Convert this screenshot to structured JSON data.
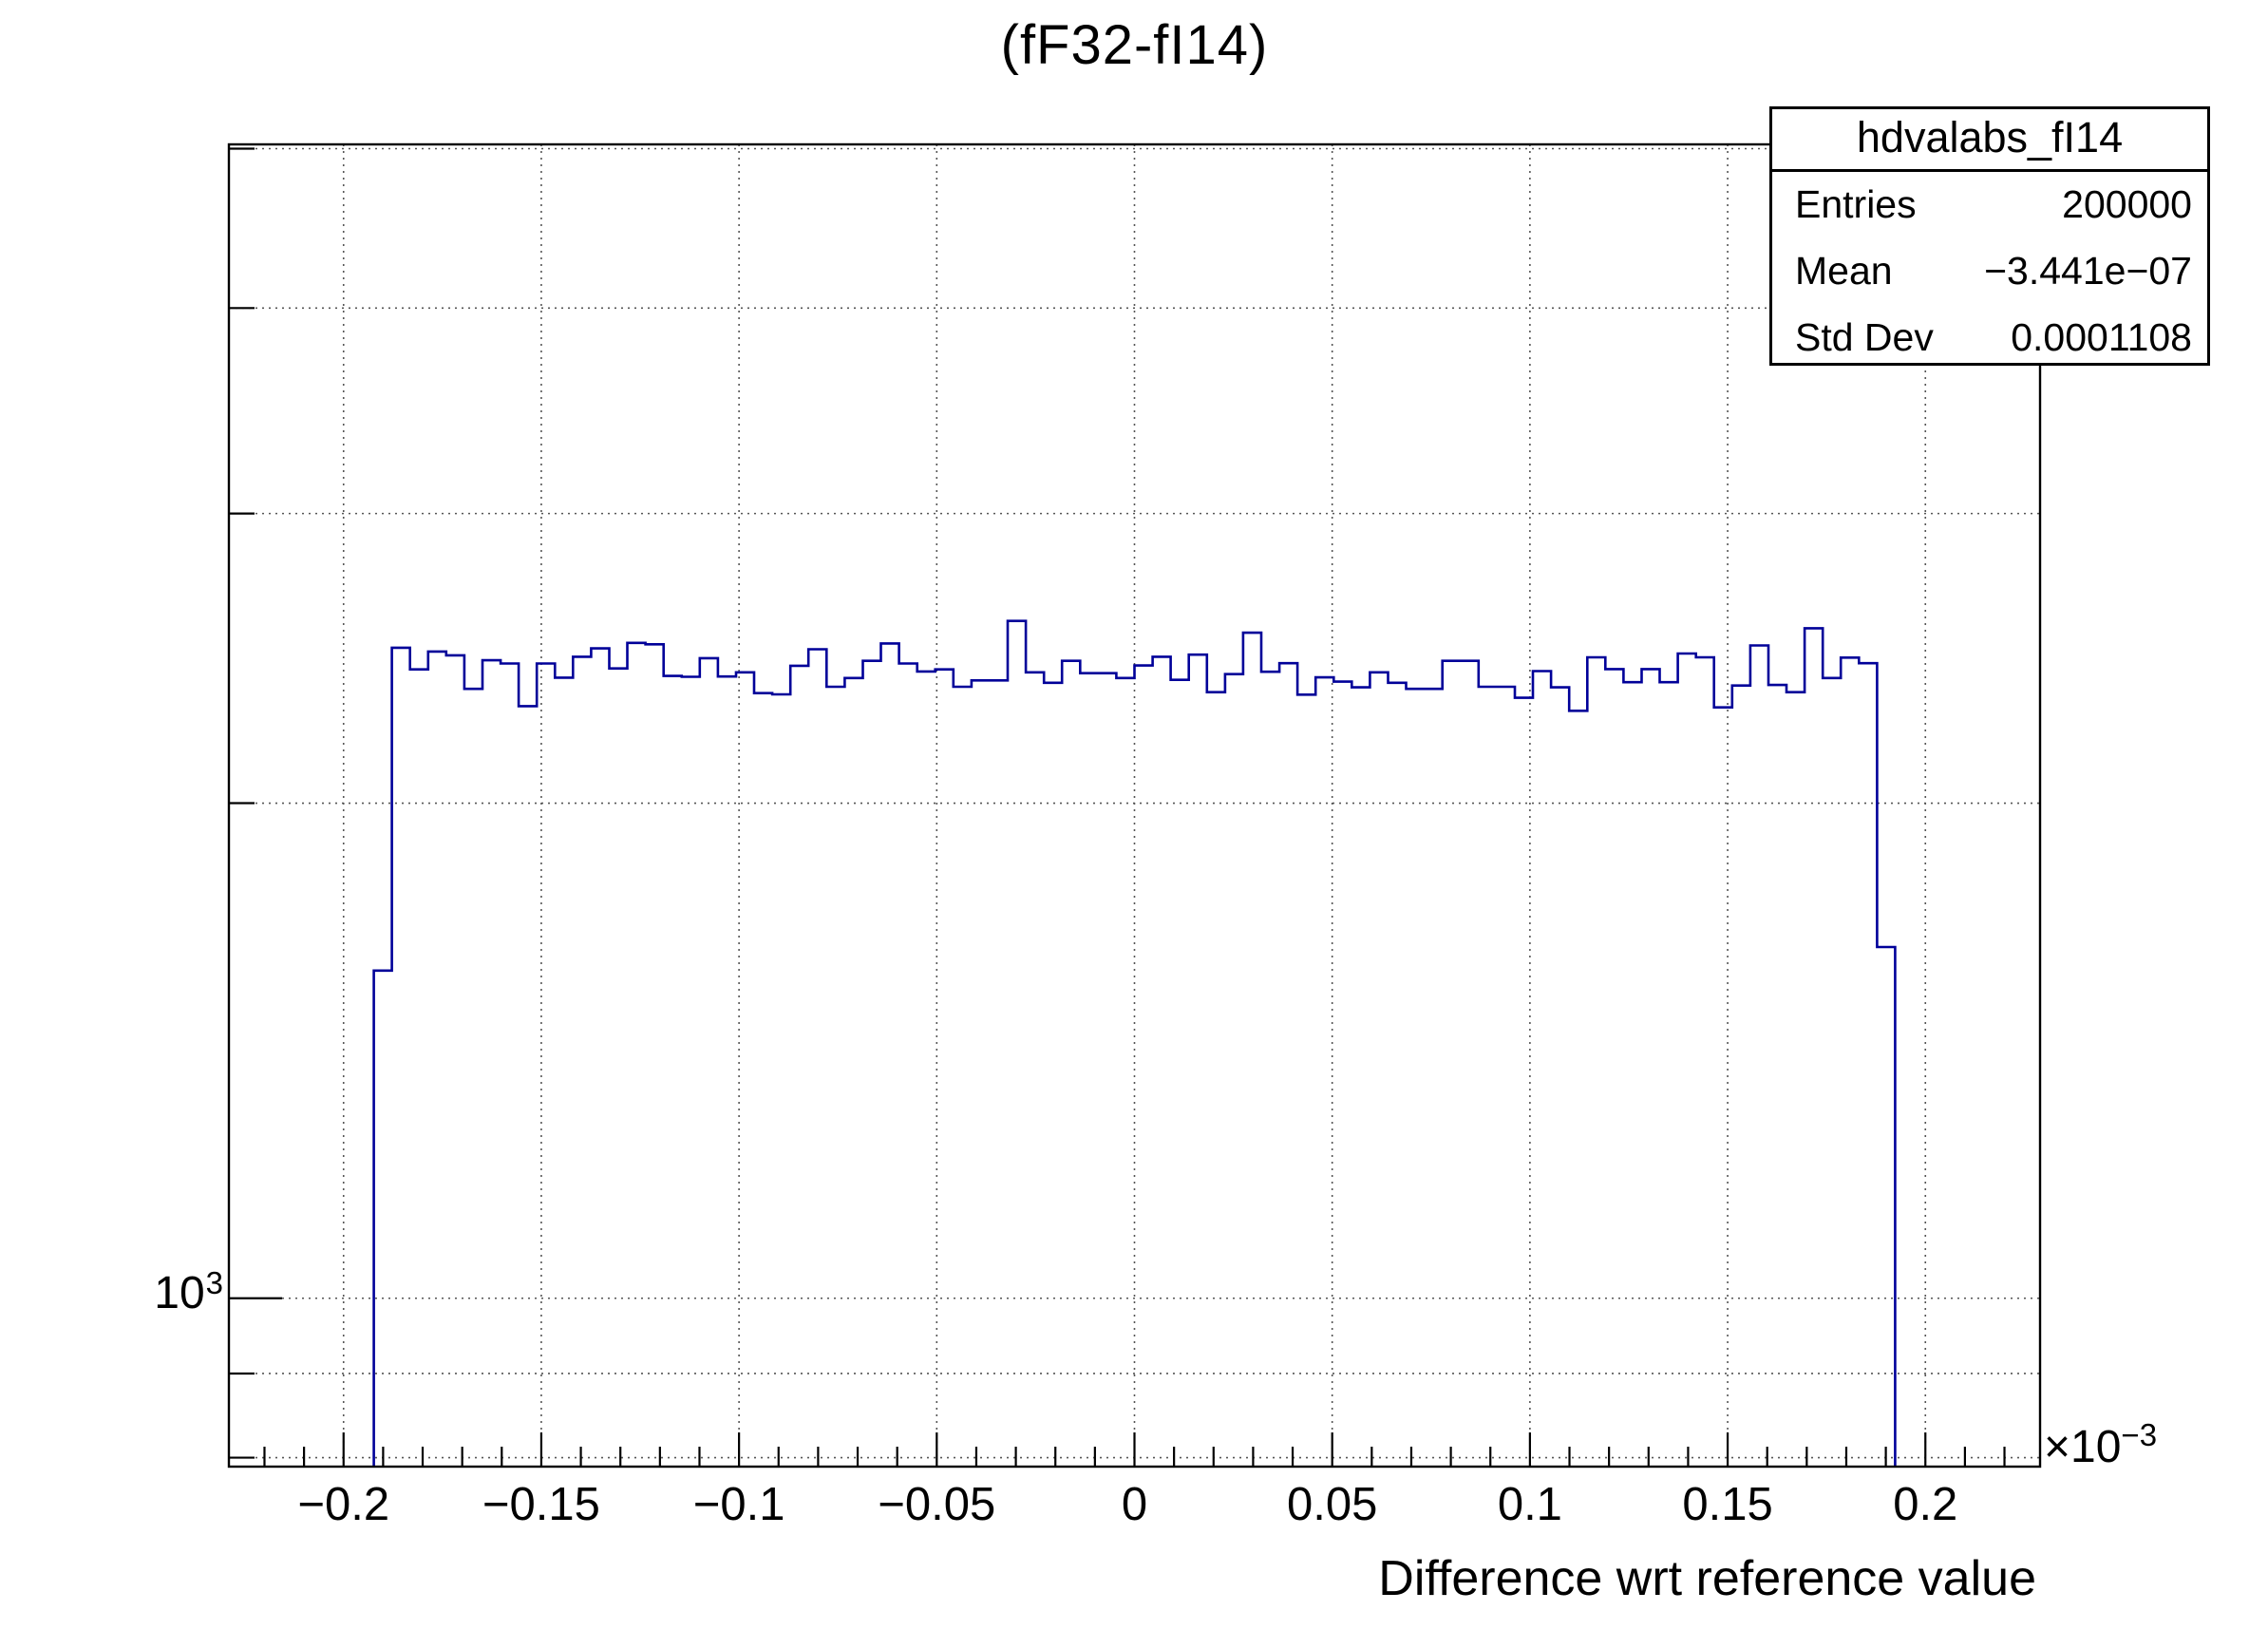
{
  "page": {
    "title": "(fF32-fI14)"
  },
  "axes": {
    "x_title": "Difference wrt reference value",
    "x_multiplier": {
      "base": "×10",
      "exp": "−3"
    },
    "y_tick_label": {
      "base": "10",
      "exp": "3"
    }
  },
  "stats_box": {
    "title": "hdvalabs_fI14",
    "rows": [
      {
        "label": "Entries",
        "value": "200000"
      },
      {
        "label": "Mean",
        "value": "−3.441e−07"
      },
      {
        "label": "Std Dev",
        "value": "0.0001108"
      }
    ]
  },
  "chart_data": {
    "type": "bar",
    "subtype": "step-histogram-log-y",
    "title": "(fF32-fI14)",
    "xlabel": "Difference wrt reference value",
    "ylabel": "",
    "x_units_multiplier": "1e-3",
    "legend": "none",
    "grid": "dotted-on-major-x-and-all-y-ticks",
    "x_axis": {
      "min": -0.229,
      "max": 0.229,
      "tick_values": [
        -0.2,
        -0.15,
        -0.1,
        -0.05,
        0,
        0.05,
        0.1,
        0.15,
        0.2
      ],
      "tick_labels": [
        "−0.2",
        "−0.15",
        "−0.1",
        "−0.05",
        "0",
        "0.05",
        "0.1",
        "0.15",
        "0.2"
      ],
      "minor_tick_step": 0.01
    },
    "y_axis": {
      "scale": "log",
      "min": 790,
      "max": 5030,
      "labeled_tick_value": 1000,
      "grid_tick_values": [
        800,
        900,
        1000,
        2000,
        3000,
        4000,
        5000
      ]
    },
    "histogram": {
      "n_bins": 100,
      "first_populated_bin": 8,
      "bin_width": 0.00458,
      "values": [
        1582,
        2486,
        2412,
        2473,
        2460,
        2347,
        2443,
        2432,
        2291,
        2432,
        2384,
        2455,
        2484,
        2415,
        2503,
        2498,
        2390,
        2387,
        2450,
        2388,
        2402,
        2333,
        2329,
        2424,
        2481,
        2354,
        2383,
        2441,
        2501,
        2432,
        2405,
        2412,
        2354,
        2375,
        2375,
        2581,
        2402,
        2367,
        2441,
        2399,
        2399,
        2383,
        2425,
        2455,
        2377,
        2462,
        2336,
        2396,
        2539,
        2404,
        2433,
        2328,
        2385,
        2371,
        2352,
        2402,
        2367,
        2347,
        2347,
        2441,
        2441,
        2354,
        2354,
        2318,
        2406,
        2352,
        2276,
        2453,
        2413,
        2369,
        2413,
        2369,
        2466,
        2453,
        2287,
        2358,
        2494,
        2360,
        2336,
        2555,
        2383,
        2452,
        2433,
        1635
      ]
    },
    "stats": {
      "name": "hdvalabs_fI14",
      "entries": 200000,
      "mean": "−3.441e−07",
      "std_dev": 0.0001108
    },
    "colors": {
      "line": "#000099",
      "grid": "#555555",
      "axis": "#000000",
      "background": "#ffffff"
    }
  }
}
